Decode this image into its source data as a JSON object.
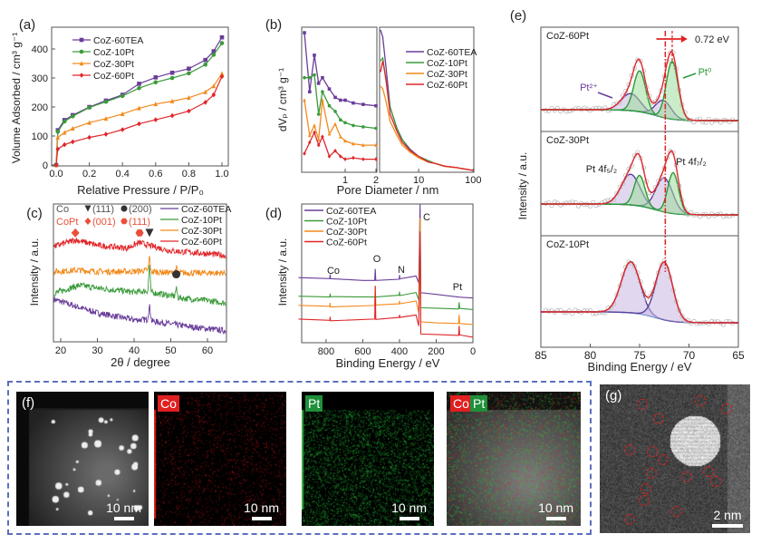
{
  "colors": {
    "CoZ-60TEA": "#6a3d9a",
    "CoZ-10Pt": "#3a9a3a",
    "CoZ-30Pt": "#f28a1c",
    "CoZ-60Pt": "#e0262a",
    "Pt2+": "#5a3d9a",
    "Pt0": "#2a9a3a",
    "background": "#4a86c8",
    "envelope": "#e0262a"
  },
  "chart_data": [
    {
      "panel": "(a)",
      "type": "line",
      "xlabel": "Relative Pressure / P/P₀",
      "ylabel": "Volume Adsorbed / cm³ g⁻¹",
      "xlim": [
        0,
        1.0
      ],
      "ylim": [
        0,
        475
      ],
      "xticks": [
        "0.0",
        "0.2",
        "0.4",
        "0.6",
        "0.8",
        "1.0"
      ],
      "yticks": [
        "0",
        "100",
        "200",
        "300",
        "400"
      ],
      "legend_position": "top-left",
      "x": [
        0,
        0.01,
        0.05,
        0.1,
        0.2,
        0.3,
        0.4,
        0.5,
        0.6,
        0.7,
        0.8,
        0.9,
        0.95,
        1.0
      ],
      "series": [
        {
          "name": "CoZ-60TEA",
          "marker": "square",
          "values": [
            0,
            120,
            155,
            172,
            200,
            222,
            242,
            280,
            302,
            318,
            332,
            362,
            392,
            440
          ]
        },
        {
          "name": "CoZ-10Pt",
          "marker": "circle",
          "values": [
            0,
            115,
            150,
            168,
            198,
            218,
            238,
            265,
            285,
            300,
            316,
            346,
            380,
            420
          ]
        },
        {
          "name": "CoZ-30Pt",
          "marker": "triangle",
          "values": [
            0,
            95,
            112,
            126,
            146,
            160,
            176,
            196,
            210,
            220,
            232,
            252,
            272,
            315
          ]
        },
        {
          "name": "CoZ-60Pt",
          "marker": "diamond",
          "values": [
            0,
            55,
            70,
            80,
            95,
            106,
            122,
            142,
            156,
            170,
            186,
            216,
            242,
            305
          ]
        }
      ]
    },
    {
      "panel": "(b)",
      "type": "line",
      "xlabel": "Pore Diameter / nm",
      "ylabel": "dVₚ / cm³ g⁻¹",
      "xscale": "log",
      "left": {
        "xlim": [
          0.38,
          2
        ],
        "xticks": [
          "1",
          "2"
        ],
        "x": [
          0.4,
          0.45,
          0.5,
          0.55,
          0.6,
          0.7,
          0.8,
          0.9,
          1,
          1.2,
          1.5,
          2
        ],
        "series": [
          {
            "name": "CoZ-60TEA",
            "values": [
              0.98,
              0.56,
              0.82,
              0.62,
              0.66,
              0.58,
              0.52,
              0.5,
              0.5,
              0.48,
              0.47,
              0.46
            ]
          },
          {
            "name": "CoZ-10Pt",
            "values": [
              0.66,
              0.66,
              0.68,
              0.4,
              0.56,
              0.46,
              0.42,
              0.36,
              0.34,
              0.32,
              0.31,
              0.3
            ]
          },
          {
            "name": "CoZ-30Pt",
            "values": [
              0.5,
              0.25,
              0.32,
              0.22,
              0.5,
              0.26,
              0.33,
              0.24,
              0.21,
              0.19,
              0.18,
              0.18
            ]
          },
          {
            "name": "CoZ-60Pt",
            "values": [
              0.12,
              0.2,
              0.27,
              0.18,
              0.24,
              0.1,
              0.14,
              0.1,
              0.08,
              0.09,
              0.08,
              0.08
            ]
          }
        ]
      },
      "right": {
        "xlim": [
          2,
          100
        ],
        "xticks": [
          "10",
          "100"
        ],
        "x": [
          2,
          2.2,
          2.5,
          3,
          4,
          5,
          7,
          10,
          15,
          20,
          30,
          50,
          100
        ],
        "series": [
          {
            "name": "CoZ-60TEA",
            "values": [
              1.0,
              0.95,
              0.75,
              0.45,
              0.3,
              0.22,
              0.15,
              0.1,
              0.07,
              0.05,
              0.03,
              0.02,
              0.0
            ]
          },
          {
            "name": "CoZ-10Pt",
            "values": [
              0.78,
              0.8,
              0.65,
              0.45,
              0.3,
              0.22,
              0.14,
              0.1,
              0.07,
              0.05,
              0.03,
              0.02,
              0.0
            ]
          },
          {
            "name": "CoZ-30Pt",
            "values": [
              0.6,
              0.58,
              0.5,
              0.35,
              0.25,
              0.18,
              0.13,
              0.09,
              0.06,
              0.05,
              0.03,
              0.02,
              0.0
            ]
          },
          {
            "name": "CoZ-60Pt",
            "values": [
              0.7,
              0.78,
              0.66,
              0.4,
              0.28,
              0.2,
              0.14,
              0.1,
              0.06,
              0.05,
              0.03,
              0.02,
              0.0
            ]
          }
        ]
      },
      "legend_position": "top-right"
    },
    {
      "panel": "(c)",
      "type": "line",
      "xlabel": "2θ  / degree",
      "ylabel": "Intensity / a.u.",
      "xlim": [
        18,
        65
      ],
      "ylim": [
        0,
        10
      ],
      "xticks": [
        "20",
        "30",
        "40",
        "50",
        "60"
      ],
      "legend_position": "top-right",
      "annotations": {
        "co_label": "Co",
        "co_111": "(111)",
        "co_200": "(200)",
        "copt_label": "CoPt",
        "copt_001": "(001)",
        "copt_111": "(111)"
      },
      "markers": [
        {
          "type": "diamond",
          "x": 24,
          "y": 7.9
        },
        {
          "type": "hexagon",
          "x": 41.5,
          "y": 7.9
        },
        {
          "type": "triangle",
          "x": 44.2,
          "y": 7.9
        },
        {
          "type": "circle",
          "x": 51.5,
          "y": 4.9
        }
      ],
      "series": [
        {
          "name": "CoZ-60TEA",
          "points": [
            [
              18,
              3.1
            ],
            [
              25,
              2.5
            ],
            [
              30,
              2.1
            ],
            [
              40,
              1.6
            ],
            [
              43.6,
              1.6
            ],
            [
              44.2,
              2.6
            ],
            [
              44.8,
              1.5
            ],
            [
              50,
              1.3
            ],
            [
              55,
              1.1
            ],
            [
              60,
              0.95
            ],
            [
              65,
              0.8
            ]
          ]
        },
        {
          "name": "CoZ-10Pt",
          "points": [
            [
              18,
              3.5
            ],
            [
              25,
              4.1
            ],
            [
              30,
              3.9
            ],
            [
              40,
              3.6
            ],
            [
              43.8,
              3.7
            ],
            [
              44.2,
              5.85
            ],
            [
              44.6,
              3.6
            ],
            [
              51,
              3.3
            ],
            [
              51.5,
              3.9
            ],
            [
              52,
              3.2
            ],
            [
              60,
              3.0
            ],
            [
              65,
              2.8
            ]
          ]
        },
        {
          "name": "CoZ-30Pt",
          "points": [
            [
              18,
              5.1
            ],
            [
              25,
              5.2
            ],
            [
              30,
              5.1
            ],
            [
              40,
              5.1
            ],
            [
              43.8,
              5.2
            ],
            [
              44.2,
              6.25
            ],
            [
              44.6,
              5.1
            ],
            [
              51,
              5.0
            ],
            [
              51.5,
              5.4
            ],
            [
              52,
              5.0
            ],
            [
              60,
              5.0
            ],
            [
              65,
              5.0
            ]
          ]
        },
        {
          "name": "CoZ-60Pt",
          "points": [
            [
              18,
              6.9
            ],
            [
              24,
              7.4
            ],
            [
              30,
              7.0
            ],
            [
              38,
              6.8
            ],
            [
              41.5,
              7.2
            ],
            [
              44,
              7.0
            ],
            [
              50,
              6.6
            ],
            [
              55,
              6.5
            ],
            [
              60,
              6.4
            ],
            [
              65,
              6.25
            ]
          ]
        }
      ]
    },
    {
      "panel": "(d)",
      "type": "line",
      "xlabel": "Binding Energy / eV",
      "ylabel": "Intensity / a.u.",
      "xlim": [
        950,
        0
      ],
      "ylim": [
        0,
        10
      ],
      "xticks": [
        "800",
        "600",
        "400",
        "200",
        "0"
      ],
      "legend_position": "top-left",
      "peak_labels": [
        {
          "text": "Co",
          "x": 790
        },
        {
          "text": "O",
          "x": 532
        },
        {
          "text": "N",
          "x": 400
        },
        {
          "text": "C",
          "x": 250
        },
        {
          "text": "Pt",
          "x": 75
        }
      ],
      "series": [
        {
          "name": "CoZ-60TEA",
          "points": [
            [
              950,
              4.7
            ],
            [
              780,
              4.6
            ],
            [
              778,
              4.9
            ],
            [
              776,
              4.6
            ],
            [
              600,
              4.5
            ],
            [
              535,
              4.5
            ],
            [
              532,
              5.3
            ],
            [
              529,
              4.5
            ],
            [
              402,
              4.6
            ],
            [
              400,
              4.9
            ],
            [
              398,
              4.6
            ],
            [
              310,
              4.8
            ],
            [
              295,
              4.3
            ],
            [
              288,
              10
            ],
            [
              284,
              3.6
            ],
            [
              200,
              3.5
            ],
            [
              75,
              3.3
            ],
            [
              0,
              3.2
            ]
          ]
        },
        {
          "name": "CoZ-10Pt",
          "points": [
            [
              950,
              3.35
            ],
            [
              780,
              3.3
            ],
            [
              778,
              3.55
            ],
            [
              776,
              3.3
            ],
            [
              535,
              3.3
            ],
            [
              532,
              3.5
            ],
            [
              529,
              3.3
            ],
            [
              402,
              3.4
            ],
            [
              400,
              3.65
            ],
            [
              398,
              3.4
            ],
            [
              310,
              3.6
            ],
            [
              295,
              3.1
            ],
            [
              288,
              9.0
            ],
            [
              284,
              2.5
            ],
            [
              200,
              2.5
            ],
            [
              78,
              2.45
            ],
            [
              75,
              2.9
            ],
            [
              72,
              2.45
            ],
            [
              0,
              2.4
            ]
          ]
        },
        {
          "name": "CoZ-30Pt",
          "points": [
            [
              950,
              2.7
            ],
            [
              780,
              2.6
            ],
            [
              778,
              2.85
            ],
            [
              776,
              2.6
            ],
            [
              535,
              2.7
            ],
            [
              532,
              4.1
            ],
            [
              529,
              2.7
            ],
            [
              402,
              2.8
            ],
            [
              400,
              3.0
            ],
            [
              398,
              2.8
            ],
            [
              310,
              3.0
            ],
            [
              295,
              2.2
            ],
            [
              288,
              9.0
            ],
            [
              284,
              1.5
            ],
            [
              200,
              1.45
            ],
            [
              78,
              1.4
            ],
            [
              75,
              2.0
            ],
            [
              72,
              1.4
            ],
            [
              0,
              1.3
            ]
          ]
        },
        {
          "name": "CoZ-60Pt",
          "points": [
            [
              950,
              1.7
            ],
            [
              780,
              1.6
            ],
            [
              778,
              1.85
            ],
            [
              776,
              1.6
            ],
            [
              535,
              1.7
            ],
            [
              532,
              4.1
            ],
            [
              529,
              1.7
            ],
            [
              402,
              1.8
            ],
            [
              400,
              2.0
            ],
            [
              398,
              1.8
            ],
            [
              310,
              2.0
            ],
            [
              295,
              1.2
            ],
            [
              288,
              8.0
            ],
            [
              284,
              0.6
            ],
            [
              200,
              0.6
            ],
            [
              78,
              0.55
            ],
            [
              75,
              1.2
            ],
            [
              72,
              0.55
            ],
            [
              0,
              0.4
            ]
          ]
        }
      ]
    },
    {
      "panel": "(e)",
      "type": "line",
      "xlabel": "Binding Energy / eV",
      "ylabel": "Intensity / a.u.",
      "xlim": [
        85,
        65
      ],
      "xticks": [
        "85",
        "80",
        "75",
        "70",
        "65"
      ],
      "shift_label": "0.72 eV",
      "peak_labels": {
        "pt2": "Pt²⁺",
        "pt0": "Pt⁰",
        "f52": "Pt 4f₅/₂",
        "f72": "Pt 4f₇/₂"
      },
      "reference_lines_ev": [
        72.4,
        71.7
      ],
      "subplots": [
        {
          "name": "CoZ-60Pt",
          "components": [
            {
              "type": "Pt2+",
              "center": 75.9,
              "height": 0.25,
              "sigma": 0.95
            },
            {
              "type": "Pt2+",
              "center": 72.6,
              "height": 0.25,
              "sigma": 0.8
            },
            {
              "type": "Pt0",
              "center": 75.0,
              "height": 0.6,
              "sigma": 0.6
            },
            {
              "type": "Pt0",
              "center": 71.7,
              "height": 0.85,
              "sigma": 0.6
            }
          ]
        },
        {
          "name": "CoZ-30Pt",
          "components": [
            {
              "type": "Pt2+",
              "center": 75.9,
              "height": 0.45,
              "sigma": 0.95
            },
            {
              "type": "Pt2+",
              "center": 72.5,
              "height": 0.5,
              "sigma": 0.85
            },
            {
              "type": "Pt0",
              "center": 75.0,
              "height": 0.45,
              "sigma": 0.55
            },
            {
              "type": "Pt0",
              "center": 71.6,
              "height": 0.6,
              "sigma": 0.55
            }
          ]
        },
        {
          "name": "CoZ-10Pt",
          "components": [
            {
              "type": "Pt2+",
              "center": 75.9,
              "height": 0.75,
              "sigma": 0.95
            },
            {
              "type": "Pt2+",
              "center": 72.5,
              "height": 0.85,
              "sigma": 0.85
            }
          ]
        }
      ]
    }
  ],
  "microscopy": {
    "f": {
      "label": "(f)",
      "scale": "10 nm"
    },
    "co": {
      "tag": "Co",
      "scale": "10 nm"
    },
    "pt": {
      "tag": "Pt",
      "scale": "10 nm"
    },
    "overlay": {
      "tag_co": "Co",
      "tag_pt": "Pt",
      "scale": "10 nm"
    },
    "g": {
      "label": "(g)",
      "scale": "2 nm"
    }
  }
}
